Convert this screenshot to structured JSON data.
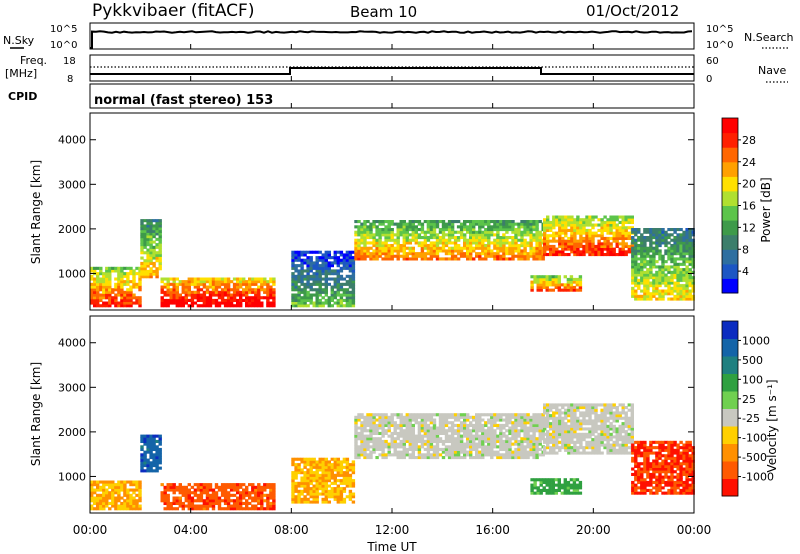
{
  "header": {
    "station": "Pykkvibaer (fitACF)",
    "beam": "Beam 10",
    "date": "01/Oct/2012"
  },
  "status_panels": {
    "nsky_label": "N.Sky",
    "nsearch_label": "N.Search",
    "noise_ticks_left": [
      "10^5",
      "10^0"
    ],
    "noise_ticks_right": [
      "10^5",
      "10^0"
    ],
    "freq_label": "Freq.",
    "freq_unit": "[MHz]",
    "freq_ticks": [
      "18",
      "8"
    ],
    "nave_label": "Nave",
    "nave_ticks": [
      "60",
      "0"
    ],
    "cpid_label": "CPID",
    "cpid_value": "normal (fast stereo) 153"
  },
  "chart_data": [
    {
      "type": "heatmap",
      "title": "",
      "xlabel": "Time UT",
      "ylabel": "Slant Range [km]",
      "x_ticks": [
        "00:00",
        "04:00",
        "08:00",
        "12:00",
        "16:00",
        "20:00",
        "00:00"
      ],
      "y_ticks": [
        "1000",
        "2000",
        "3000",
        "4000"
      ],
      "xlim": [
        0,
        24
      ],
      "ylim": [
        180,
        4600
      ],
      "colorbar": {
        "label": "Power [dB]",
        "ticks": [
          "4",
          "8",
          "12",
          "16",
          "20",
          "24",
          "28"
        ],
        "colors": [
          "#0000ff",
          "#1c56c4",
          "#2e6fa0",
          "#3c7e6b",
          "#3e9a4a",
          "#5cc44a",
          "#b0e030",
          "#ffe000",
          "#ffa000",
          "#ff6600",
          "#ff2000",
          "#ff0000"
        ]
      },
      "regions": [
        {
          "t0": 0.0,
          "t1": 2.0,
          "r0": 250,
          "r1": 1100,
          "v": 22
        },
        {
          "t0": 2.0,
          "t1": 2.8,
          "r0": 900,
          "r1": 2200,
          "v": 16
        },
        {
          "t0": 2.8,
          "t1": 7.3,
          "r0": 250,
          "r1": 900,
          "v": 26
        },
        {
          "t0": 8.0,
          "t1": 10.5,
          "r0": 250,
          "r1": 1500,
          "v": 8
        },
        {
          "t0": 10.5,
          "t1": 18.0,
          "r0": 1300,
          "r1": 2200,
          "v": 18
        },
        {
          "t0": 18.0,
          "t1": 21.5,
          "r0": 1400,
          "r1": 2300,
          "v": 22
        },
        {
          "t0": 17.5,
          "t1": 19.5,
          "r0": 600,
          "r1": 950,
          "v": 20
        },
        {
          "t0": 21.5,
          "t1": 24.0,
          "r0": 400,
          "r1": 2000,
          "v": 14
        }
      ]
    },
    {
      "type": "heatmap",
      "title": "",
      "xlabel": "Time UT",
      "ylabel": "Slant Range [km]",
      "x_ticks": [
        "00:00",
        "04:00",
        "08:00",
        "12:00",
        "16:00",
        "20:00",
        "00:00"
      ],
      "y_ticks": [
        "1000",
        "2000",
        "3000",
        "4000"
      ],
      "xlim": [
        0,
        24
      ],
      "ylim": [
        180,
        4600
      ],
      "colorbar": {
        "label": "Velocity [m s⁻¹]",
        "ticks": [
          "1000",
          "500",
          "100",
          "25",
          "-25",
          "-100",
          "-500",
          "-1000"
        ],
        "colors": [
          "#0b2cc0",
          "#1464a8",
          "#1f8080",
          "#2fa040",
          "#70d050",
          "#c8c8c0",
          "#ffd000",
          "#ff9000",
          "#ff5a00",
          "#ff1000"
        ]
      },
      "regions": [
        {
          "t0": 0.0,
          "t1": 2.0,
          "r0": 250,
          "r1": 900,
          "v": -100
        },
        {
          "t0": 2.0,
          "t1": 2.8,
          "r0": 1100,
          "r1": 1900,
          "v": 800
        },
        {
          "t0": 2.8,
          "t1": 7.3,
          "r0": 250,
          "r1": 800,
          "v": -400
        },
        {
          "t0": 8.0,
          "t1": 10.5,
          "r0": 400,
          "r1": 1400,
          "v": -100
        },
        {
          "t0": 10.5,
          "t1": 18.0,
          "r0": 1400,
          "r1": 2400,
          "v": 0
        },
        {
          "t0": 18.0,
          "t1": 21.5,
          "r0": 1500,
          "r1": 2600,
          "v": 0
        },
        {
          "t0": 17.5,
          "t1": 19.5,
          "r0": 600,
          "r1": 950,
          "v": 150
        },
        {
          "t0": 21.5,
          "t1": 24.0,
          "r0": 600,
          "r1": 1800,
          "v": -500
        }
      ]
    }
  ]
}
